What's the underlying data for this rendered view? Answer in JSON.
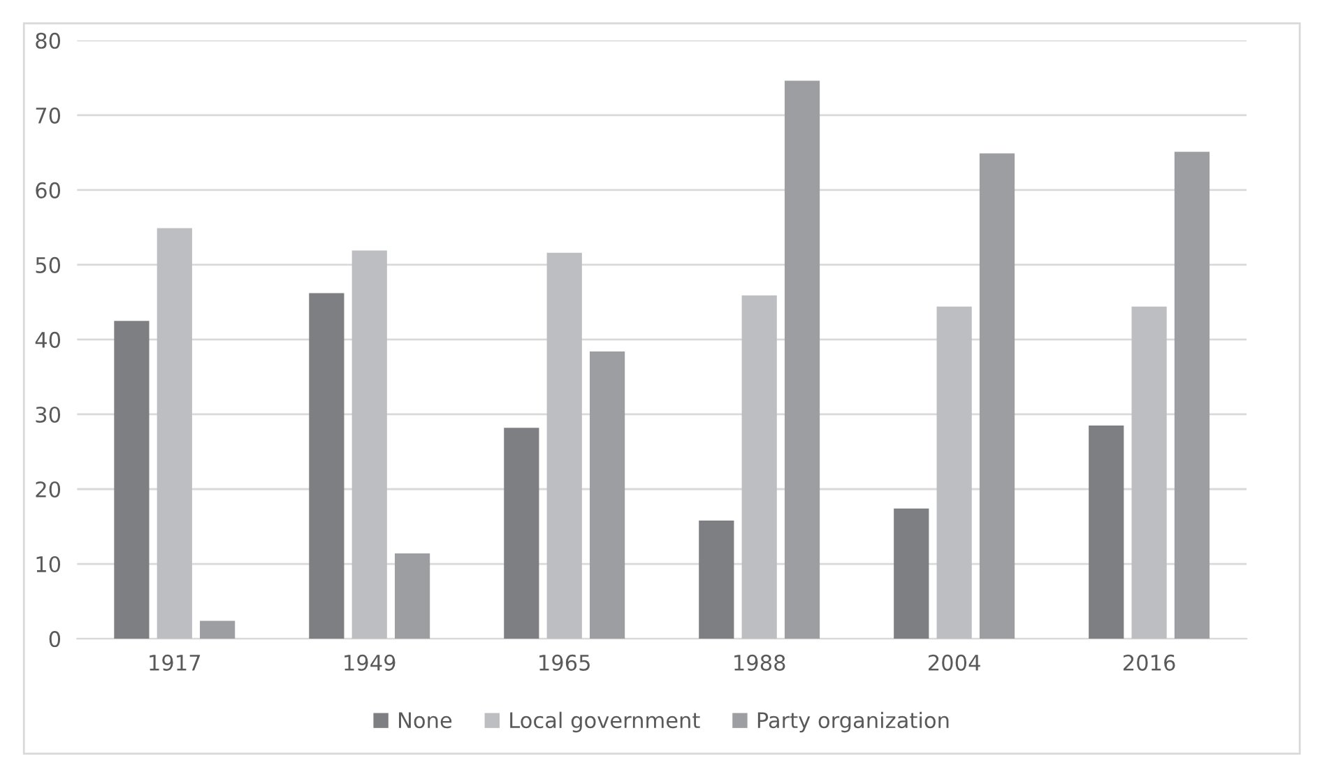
{
  "chart_data": {
    "type": "bar",
    "categories": [
      "1917",
      "1949",
      "1965",
      "1988",
      "2004",
      "2016"
    ],
    "series": [
      {
        "name": "None",
        "color": "#7e7f83",
        "values": [
          42.5,
          46.2,
          28.2,
          15.8,
          17.4,
          28.5
        ]
      },
      {
        "name": "Local government",
        "color": "#bdbec2",
        "values": [
          54.9,
          51.9,
          51.6,
          45.9,
          44.4,
          44.4
        ]
      },
      {
        "name": "Party organization",
        "color": "#9d9ea2",
        "values": [
          2.4,
          11.4,
          38.4,
          74.6,
          64.9,
          65.1
        ]
      }
    ],
    "ylim": [
      0,
      80
    ],
    "yticks": [
      0,
      10,
      20,
      30,
      40,
      50,
      60,
      70,
      80
    ],
    "grid": "y",
    "legend": "bottom"
  }
}
